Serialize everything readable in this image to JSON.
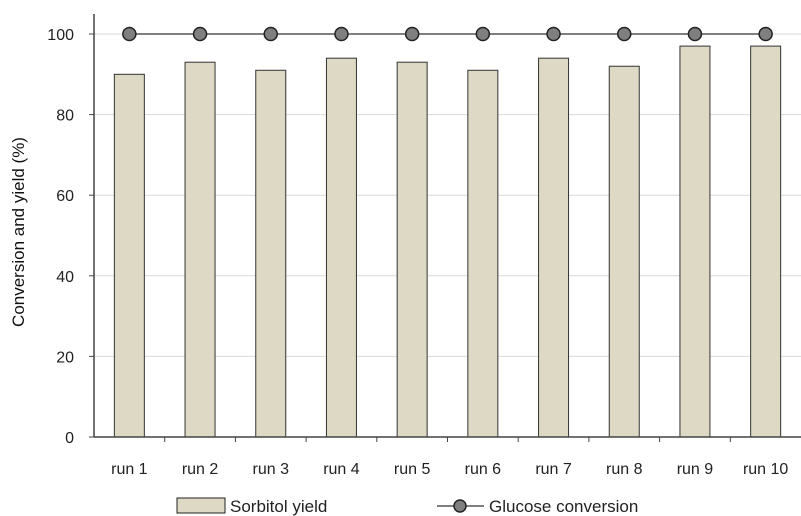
{
  "chart_data": {
    "type": "bar",
    "categories": [
      "run 1",
      "run 2",
      "run 3",
      "run 4",
      "run 5",
      "run 6",
      "run 7",
      "run 8",
      "run 9",
      "run 10"
    ],
    "series": [
      {
        "name": "Sorbitol yield",
        "type": "bar",
        "values": [
          90,
          93,
          91,
          94,
          93,
          91,
          94,
          92,
          97,
          97
        ],
        "color": "#ddd9c4"
      },
      {
        "name": "Glucose conversion",
        "type": "line",
        "marker": "circle",
        "values": [
          100,
          100,
          100,
          100,
          100,
          100,
          100,
          100,
          100,
          100
        ],
        "color": "#7f7f7f"
      }
    ],
    "title": "",
    "xlabel": "",
    "ylabel": "Conversion and yield (%)",
    "ylim": [
      0,
      100
    ],
    "yticks": [
      0,
      20,
      40,
      60,
      80,
      100
    ],
    "grid": true,
    "legend": "bottom"
  }
}
